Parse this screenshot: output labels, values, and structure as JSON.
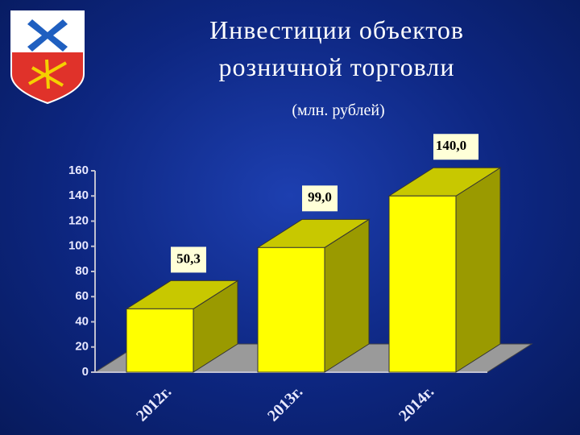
{
  "chart_data": {
    "type": "bar3d",
    "title": "Инвестиции объектов розничной торговли",
    "subtitle": "(млн. рублей)",
    "categories": [
      "2012г.",
      "2013г.",
      "2014г."
    ],
    "values": [
      50.3,
      99.0,
      140.0
    ],
    "value_labels": [
      "50,3",
      "99,0",
      "140,0"
    ],
    "color": "#ffff00",
    "ylim": [
      0,
      160
    ],
    "yticks": [
      0,
      20,
      40,
      60,
      80,
      100,
      120,
      140,
      160
    ]
  }
}
